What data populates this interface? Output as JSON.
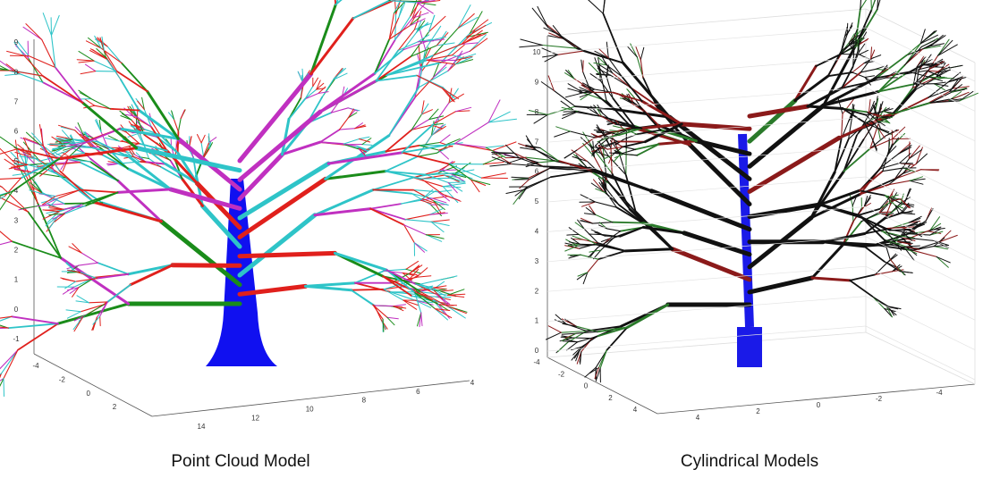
{
  "panels": [
    {
      "caption": "Point Cloud Model",
      "zticks": [
        -1,
        0,
        1,
        2,
        3,
        4,
        5,
        6,
        7,
        8,
        9
      ],
      "xticks": [
        -4,
        -2,
        0,
        2
      ],
      "yticks": [
        14,
        12,
        10,
        8,
        6,
        4
      ]
    },
    {
      "caption": "Cylindrical Models",
      "zticks": [
        0,
        1,
        2,
        3,
        4,
        5,
        6,
        7,
        8,
        9,
        10
      ],
      "xticks": [
        -4,
        -2,
        0,
        2,
        4
      ],
      "yticks": [
        4,
        2,
        0,
        -2,
        -4
      ]
    }
  ]
}
